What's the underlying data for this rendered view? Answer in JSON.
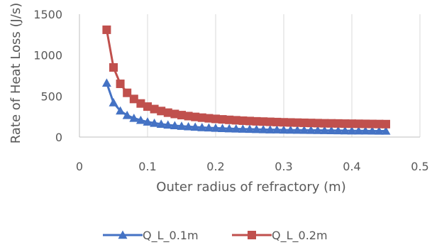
{
  "chart_data": {
    "type": "line",
    "title": "",
    "xlabel": "Outer radius of refractory  (m)",
    "ylabel": "Rate of Heat Loss  (J/s)",
    "xlim": [
      0,
      0.5
    ],
    "ylim": [
      0,
      1500
    ],
    "x_ticks": [
      "0",
      "0.1",
      "0.2",
      "0.3",
      "0.4",
      "0.5"
    ],
    "y_ticks": [
      "0",
      "500",
      "1000",
      "1500"
    ],
    "grid": "vertical",
    "legend_position": "bottom",
    "series": [
      {
        "name": "Q_L_0.1m",
        "color": "#4472C4",
        "marker": "triangle",
        "x": [
          0.04,
          0.05,
          0.06,
          0.07,
          0.08,
          0.09,
          0.1,
          0.11,
          0.12,
          0.13,
          0.14,
          0.15,
          0.16,
          0.17,
          0.18,
          0.19,
          0.2,
          0.21,
          0.22,
          0.23,
          0.24,
          0.25,
          0.26,
          0.27,
          0.28,
          0.29,
          0.3,
          0.31,
          0.32,
          0.33,
          0.34,
          0.35,
          0.36,
          0.37,
          0.38,
          0.39,
          0.4,
          0.41,
          0.42,
          0.43,
          0.44,
          0.45
        ],
        "y": [
          660,
          420,
          320,
          265,
          230,
          205,
          185,
          170,
          158,
          148,
          140,
          133,
          127,
          122,
          117,
          113,
          109,
          106,
          103,
          100,
          98,
          96,
          94,
          92,
          90,
          89,
          87,
          86,
          85,
          84,
          83,
          82,
          81,
          80,
          79,
          78,
          77,
          76,
          76,
          75,
          74,
          74
        ]
      },
      {
        "name": "Q_L_0.2m",
        "color": "#C0504D",
        "marker": "square",
        "x": [
          0.04,
          0.05,
          0.06,
          0.07,
          0.08,
          0.09,
          0.1,
          0.11,
          0.12,
          0.13,
          0.14,
          0.15,
          0.16,
          0.17,
          0.18,
          0.19,
          0.2,
          0.21,
          0.22,
          0.23,
          0.24,
          0.25,
          0.26,
          0.27,
          0.28,
          0.29,
          0.3,
          0.31,
          0.32,
          0.33,
          0.34,
          0.35,
          0.36,
          0.37,
          0.38,
          0.39,
          0.4,
          0.41,
          0.42,
          0.43,
          0.44,
          0.45
        ],
        "y": [
          1310,
          850,
          650,
          540,
          465,
          410,
          372,
          342,
          318,
          298,
          282,
          268,
          256,
          246,
          237,
          229,
          222,
          216,
          210,
          205,
          200,
          196,
          192,
          189,
          186,
          183,
          180,
          178,
          176,
          174,
          172,
          170,
          168,
          167,
          166,
          164,
          163,
          162,
          161,
          160,
          159,
          158
        ]
      }
    ]
  }
}
